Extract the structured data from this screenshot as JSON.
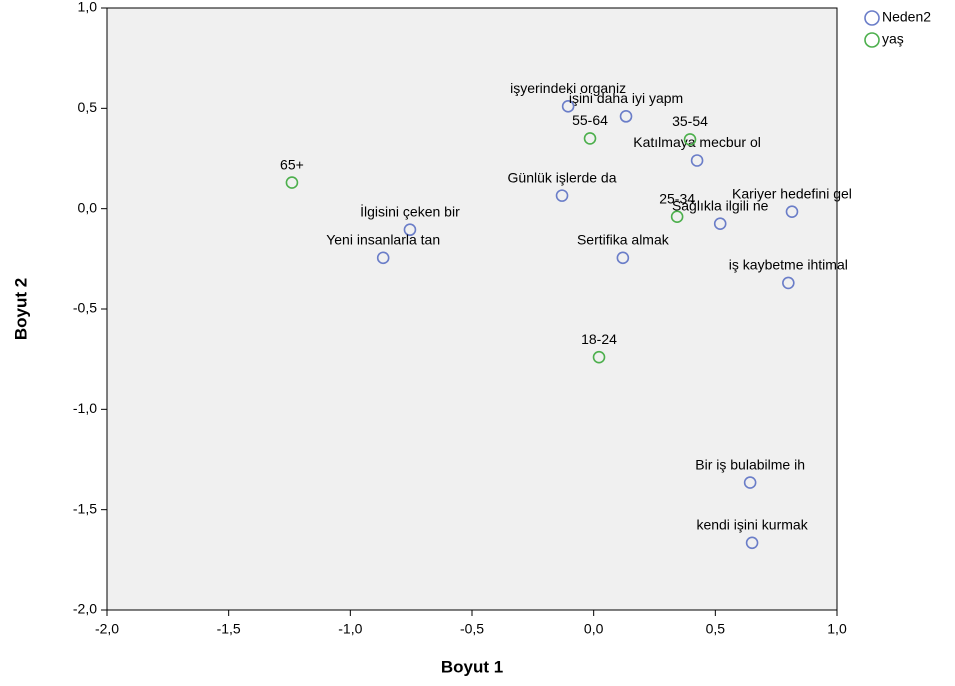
{
  "chart_data": {
    "type": "scatter",
    "x_label": "Boyut 1",
    "y_label": "Boyut 2",
    "xlim": [
      -2.0,
      1.0
    ],
    "ylim": [
      -2.0,
      1.0
    ],
    "xticks": [
      {
        "value": -2.0,
        "label": "-2,0"
      },
      {
        "value": -1.5,
        "label": "-1,5"
      },
      {
        "value": -1.0,
        "label": "-1,0"
      },
      {
        "value": -0.5,
        "label": "-0,5"
      },
      {
        "value": 0.0,
        "label": "0,0"
      },
      {
        "value": 0.5,
        "label": "0,5"
      },
      {
        "value": 1.0,
        "label": "1,0"
      }
    ],
    "yticks": [
      {
        "value": 1.0,
        "label": "1,0"
      },
      {
        "value": 0.5,
        "label": "0,5"
      },
      {
        "value": 0.0,
        "label": "0,0"
      },
      {
        "value": -0.5,
        "label": "-0,5"
      },
      {
        "value": -1.0,
        "label": "-1,0"
      },
      {
        "value": -1.5,
        "label": "-1,5"
      },
      {
        "value": -2.0,
        "label": "-2,0"
      }
    ],
    "grid": false,
    "legend": "outside-top-right",
    "series": [
      {
        "name": "Neden2",
        "color": "#6a7dc8",
        "labels": [
          "işyerindeki organiz",
          "işini daha iyi yapm",
          "Katılmaya mecbur ol",
          "Günlük işlerde da",
          "Kariyer hedefini gel",
          "Sağlıkla ilgili ne",
          "İlgisini çeken bir",
          "Yeni insanlarla tan",
          "Sertifika almak",
          "iş kaybetme ihtimal",
          "Bir iş bulabilme ih",
          "kendi işini kurmak"
        ],
        "x": [
          -0.105,
          0.133,
          0.425,
          -0.13,
          0.815,
          0.52,
          -0.755,
          -0.865,
          0.12,
          0.8,
          0.643,
          0.651
        ],
        "values": [
          0.51,
          0.46,
          0.24,
          0.065,
          -0.015,
          -0.075,
          -0.105,
          -0.245,
          -0.245,
          -0.37,
          -1.365,
          -1.665
        ]
      },
      {
        "name": "yaş",
        "color": "#4caf4c",
        "labels": [
          "65+",
          "55-64",
          "35-54",
          "25-34",
          "18-24"
        ],
        "x": [
          -1.24,
          -0.015,
          0.396,
          0.343,
          0.022
        ],
        "values": [
          0.13,
          0.35,
          0.345,
          -0.04,
          -0.74
        ]
      }
    ]
  }
}
